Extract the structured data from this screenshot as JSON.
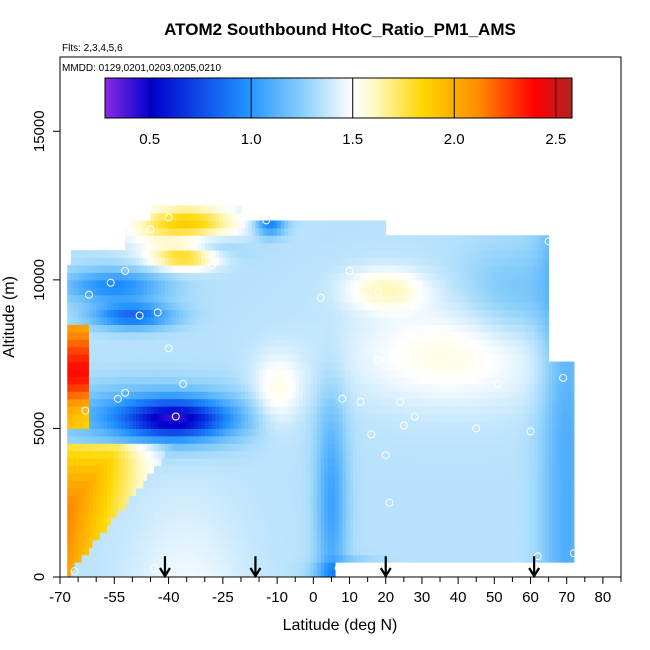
{
  "chart_data": {
    "type": "heatmap",
    "title": "ATOM2 Southbound HtoC_Ratio_PM1_AMS",
    "subtitle_flights": "Flts: 2,3,4,5,6",
    "subtitle_dates": "MMDD: 0129,0201,0203,0205,0210",
    "xlabel": "Latitude (deg N)",
    "ylabel": "Altitude (m)",
    "xlim": [
      -70,
      85
    ],
    "ylim": [
      0,
      17500
    ],
    "x_ticks": [
      -70,
      -55,
      -40,
      -25,
      -10,
      0,
      10,
      20,
      30,
      40,
      50,
      60,
      70,
      80
    ],
    "x_minor_ticks": [
      -65,
      -60,
      -50,
      -45,
      -35,
      -30,
      -20,
      -15,
      -5,
      5,
      15,
      25,
      35,
      45,
      55,
      65,
      75,
      85
    ],
    "x_tick_labels": [
      "-70",
      "-55",
      "-40",
      "-25",
      "-10",
      "0",
      "10",
      "20",
      "30",
      "40",
      "50",
      "60",
      "70",
      "80"
    ],
    "y_ticks": [
      0,
      5000,
      10000,
      15000
    ],
    "y_tick_labels": [
      "0",
      "5000",
      "10000",
      "15000"
    ],
    "colorbar": {
      "range": [
        0.28,
        2.58
      ],
      "ticks": [
        0.5,
        1.0,
        1.5,
        2.0,
        2.5
      ],
      "tick_labels": [
        "0.5",
        "1.0",
        "1.5",
        "2.0",
        "2.5"
      ],
      "colors": [
        "#8a2be2",
        "#0000cd",
        "#1e90ff",
        "#87cefa",
        "#ffffff",
        "#fff8c0",
        "#ffd700",
        "#ff8c00",
        "#ff0000",
        "#b22222"
      ]
    },
    "arrows_latitude": [
      -41,
      -16,
      20,
      61
    ],
    "arrow_color": "#000000",
    "observed_points": [
      {
        "lat": -62,
        "alt": 9500
      },
      {
        "lat": -56,
        "alt": 9900
      },
      {
        "lat": -52,
        "alt": 10300
      },
      {
        "lat": -45,
        "alt": 11700
      },
      {
        "lat": -40,
        "alt": 12100
      },
      {
        "lat": -28,
        "alt": 10500
      },
      {
        "lat": -13,
        "alt": 12000
      },
      {
        "lat": -48,
        "alt": 8800
      },
      {
        "lat": -43,
        "alt": 8900
      },
      {
        "lat": -40,
        "alt": 7700
      },
      {
        "lat": -36,
        "alt": 6500
      },
      {
        "lat": -38,
        "alt": 5400
      },
      {
        "lat": -52,
        "alt": 6200
      },
      {
        "lat": -54,
        "alt": 6000
      },
      {
        "lat": -63,
        "alt": 5600
      },
      {
        "lat": 2,
        "alt": 9400
      },
      {
        "lat": 10,
        "alt": 10300
      },
      {
        "lat": 18,
        "alt": 9600
      },
      {
        "lat": 18,
        "alt": 7300
      },
      {
        "lat": 8,
        "alt": 6000
      },
      {
        "lat": 13,
        "alt": 5900
      },
      {
        "lat": 16,
        "alt": 4800
      },
      {
        "lat": 20,
        "alt": 4100
      },
      {
        "lat": 25,
        "alt": 5100
      },
      {
        "lat": 24,
        "alt": 5900
      },
      {
        "lat": 28,
        "alt": 5400
      },
      {
        "lat": 45,
        "alt": 5000
      },
      {
        "lat": 51,
        "alt": 6500
      },
      {
        "lat": 60,
        "alt": 4900
      },
      {
        "lat": 65,
        "alt": 11300
      },
      {
        "lat": 69,
        "alt": 6700
      },
      {
        "lat": 21,
        "alt": 2500
      },
      {
        "lat": 62,
        "alt": 700
      },
      {
        "lat": 72,
        "alt": 800
      },
      {
        "lat": -66,
        "alt": 200
      },
      {
        "lat": -44,
        "alt": 300
      },
      {
        "lat": 7,
        "alt": 300
      }
    ]
  }
}
